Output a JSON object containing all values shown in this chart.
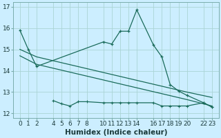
{
  "xlabel": "Humidex (Indice chaleur)",
  "background_color": "#cceeff",
  "grid_color": "#aad4d4",
  "line_color": "#1a6b5a",
  "ylim": [
    11.8,
    17.2
  ],
  "xlim": [
    -0.8,
    23.8
  ],
  "yticks": [
    12,
    13,
    14,
    15,
    16,
    17
  ],
  "xticks": [
    0,
    1,
    2,
    4,
    5,
    6,
    7,
    8,
    10,
    11,
    12,
    13,
    14,
    16,
    17,
    18,
    19,
    20,
    22,
    23
  ],
  "line1_x": [
    0,
    1,
    2,
    10,
    11,
    12,
    13,
    14,
    16,
    17,
    18,
    19,
    20,
    22,
    23
  ],
  "line1_y": [
    15.9,
    15.0,
    14.2,
    15.35,
    15.25,
    15.85,
    15.85,
    16.85,
    15.2,
    14.65,
    13.35,
    13.05,
    12.85,
    12.5,
    12.3
  ],
  "line2_x": [
    0,
    2,
    8,
    14,
    20,
    23
  ],
  "line2_y": [
    15.0,
    14.65,
    14.1,
    13.55,
    13.0,
    12.75
  ],
  "line3_x": [
    0,
    2,
    8,
    14,
    20,
    23
  ],
  "line3_y": [
    14.7,
    14.3,
    13.75,
    13.2,
    12.65,
    12.35
  ],
  "line4_x": [
    4,
    5,
    6,
    7,
    8,
    10,
    11,
    12,
    13,
    14,
    16,
    17,
    18,
    19,
    20,
    22,
    23
  ],
  "line4_y": [
    12.6,
    12.45,
    12.35,
    12.55,
    12.55,
    12.5,
    12.5,
    12.5,
    12.5,
    12.5,
    12.5,
    12.35,
    12.35,
    12.35,
    12.35,
    12.5,
    12.3
  ],
  "tick_fontsize": 6.5,
  "xlabel_fontsize": 7.5
}
